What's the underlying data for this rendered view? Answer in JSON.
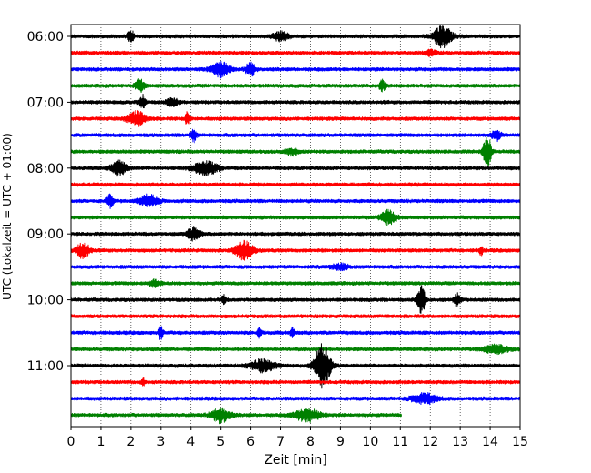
{
  "chart_data": {
    "type": "line",
    "title": "",
    "xlabel": "Zeit  [min]",
    "ylabel": "UTC (Lokalzeit = UTC + 01:00)",
    "xlim": [
      0,
      15
    ],
    "x_ticks": [
      0,
      1,
      2,
      3,
      4,
      5,
      6,
      7,
      8,
      9,
      10,
      11,
      12,
      13,
      14,
      15
    ],
    "y_tick_labels": [
      "06:00",
      "07:00",
      "08:00",
      "09:00",
      "10:00",
      "11:00"
    ],
    "grid": "vertical dotted",
    "colors": [
      "#000000",
      "#ff0000",
      "#0000ff",
      "#008000"
    ],
    "series": [
      {
        "time": "06:00",
        "color": "#000000",
        "end": 15,
        "events": [
          [
            2.0,
            0.9,
            0.1
          ],
          [
            7.0,
            0.7,
            0.25
          ],
          [
            12.4,
            1.6,
            0.3
          ]
        ]
      },
      {
        "time": "06:15",
        "color": "#ff0000",
        "end": 15,
        "events": [
          [
            12.0,
            0.4,
            0.2
          ]
        ]
      },
      {
        "time": "06:30",
        "color": "#0000ff",
        "end": 15,
        "events": [
          [
            5.0,
            1.1,
            0.3
          ],
          [
            6.0,
            1.0,
            0.15
          ]
        ]
      },
      {
        "time": "06:45",
        "color": "#008000",
        "end": 15,
        "events": [
          [
            2.3,
            0.9,
            0.15
          ],
          [
            10.4,
            0.8,
            0.1
          ]
        ]
      },
      {
        "time": "07:00",
        "color": "#000000",
        "end": 15,
        "events": [
          [
            2.4,
            1.2,
            0.1
          ],
          [
            3.4,
            0.6,
            0.2
          ]
        ]
      },
      {
        "time": "07:15",
        "color": "#ff0000",
        "end": 15,
        "events": [
          [
            2.2,
            1.1,
            0.3
          ],
          [
            3.9,
            1.0,
            0.08
          ]
        ]
      },
      {
        "time": "07:30",
        "color": "#0000ff",
        "end": 15,
        "events": [
          [
            4.1,
            1.0,
            0.1
          ],
          [
            14.2,
            0.8,
            0.15
          ]
        ]
      },
      {
        "time": "07:45",
        "color": "#008000",
        "end": 15,
        "events": [
          [
            7.4,
            0.5,
            0.2
          ],
          [
            13.9,
            3.0,
            0.12
          ]
        ]
      },
      {
        "time": "08:00",
        "color": "#000000",
        "end": 15,
        "events": [
          [
            1.6,
            1.1,
            0.25
          ],
          [
            4.5,
            1.0,
            0.4
          ]
        ]
      },
      {
        "time": "08:15",
        "color": "#ff0000",
        "end": 15,
        "events": []
      },
      {
        "time": "08:30",
        "color": "#0000ff",
        "end": 15,
        "events": [
          [
            1.3,
            1.0,
            0.1
          ],
          [
            2.6,
            0.9,
            0.3
          ]
        ]
      },
      {
        "time": "08:45",
        "color": "#008000",
        "end": 15,
        "events": [
          [
            10.6,
            1.1,
            0.25
          ]
        ]
      },
      {
        "time": "09:00",
        "color": "#000000",
        "end": 15,
        "events": [
          [
            4.1,
            1.0,
            0.2
          ]
        ]
      },
      {
        "time": "09:15",
        "color": "#ff0000",
        "end": 15,
        "events": [
          [
            0.4,
            1.3,
            0.2
          ],
          [
            5.8,
            1.4,
            0.3
          ],
          [
            13.7,
            0.7,
            0.06
          ]
        ]
      },
      {
        "time": "09:30",
        "color": "#0000ff",
        "end": 15,
        "events": [
          [
            9.0,
            0.4,
            0.3
          ]
        ]
      },
      {
        "time": "09:45",
        "color": "#008000",
        "end": 15,
        "events": [
          [
            2.8,
            0.5,
            0.2
          ]
        ]
      },
      {
        "time": "10:00",
        "color": "#000000",
        "end": 15,
        "events": [
          [
            5.1,
            0.7,
            0.08
          ],
          [
            11.7,
            2.4,
            0.12
          ],
          [
            12.9,
            1.0,
            0.1
          ]
        ]
      },
      {
        "time": "10:15",
        "color": "#ff0000",
        "end": 15,
        "events": []
      },
      {
        "time": "10:30",
        "color": "#0000ff",
        "end": 15,
        "events": [
          [
            3.0,
            1.2,
            0.06
          ],
          [
            6.3,
            0.9,
            0.06
          ],
          [
            7.4,
            0.9,
            0.06
          ]
        ]
      },
      {
        "time": "10:45",
        "color": "#008000",
        "end": 15,
        "events": [
          [
            14.2,
            0.6,
            0.4
          ]
        ]
      },
      {
        "time": "11:00",
        "color": "#000000",
        "end": 15,
        "events": [
          [
            6.4,
            0.9,
            0.4
          ],
          [
            8.4,
            3.6,
            0.25
          ]
        ]
      },
      {
        "time": "11:15",
        "color": "#ff0000",
        "end": 15,
        "events": [
          [
            2.4,
            0.6,
            0.06
          ]
        ]
      },
      {
        "time": "11:30",
        "color": "#0000ff",
        "end": 15,
        "events": [
          [
            11.8,
            0.8,
            0.4
          ]
        ]
      },
      {
        "time": "11:45",
        "color": "#008000",
        "end": 11.05,
        "events": [
          [
            5.0,
            1.1,
            0.3
          ],
          [
            7.9,
            1.0,
            0.4
          ]
        ]
      }
    ]
  }
}
